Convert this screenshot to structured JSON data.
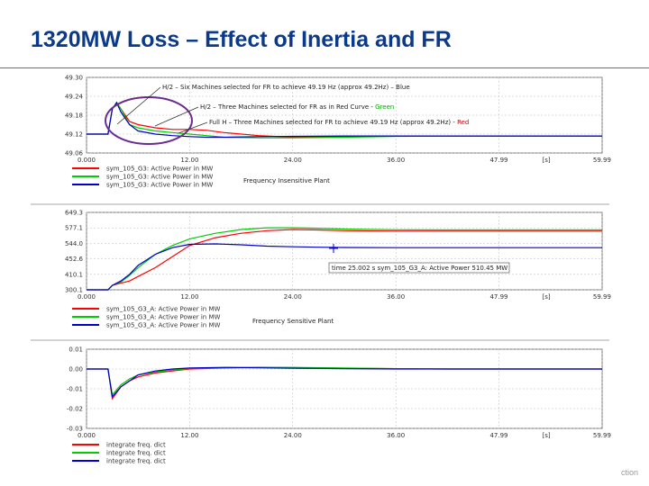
{
  "slide": {
    "title": "1320MW Loss – Effect of Inertia and FR",
    "footer": "ction"
  },
  "chart_data": [
    {
      "type": "line",
      "title": "",
      "xlabel": "[s]",
      "ylabel": "",
      "xlim": [
        0,
        60
      ],
      "ylim": [
        49.06,
        49.3
      ],
      "x_tick_labels": [
        "0.000",
        "12.00",
        "24.00",
        "36.00",
        "47.99",
        "[s]",
        "59.99"
      ],
      "y_tick_labels": [
        "49.30",
        "49.24",
        "49.18",
        "49.12",
        "49.06"
      ],
      "series": [
        {
          "name": "sym_105_G3: Active Power in MW",
          "color": "#ff0000",
          "x": [
            0,
            2.5,
            3,
            3.5,
            4,
            5,
            6,
            8,
            10,
            12,
            14,
            16,
            20,
            24,
            30,
            36,
            42,
            48,
            54,
            60
          ],
          "y": [
            49.12,
            49.12,
            49.2,
            49.22,
            49.2,
            49.16,
            49.15,
            49.14,
            49.135,
            49.135,
            49.132,
            49.125,
            49.115,
            49.11,
            49.112,
            49.114,
            49.114,
            49.114,
            49.114,
            49.114
          ]
        },
        {
          "name": "sym_105_G3: Active Power in MW",
          "color": "#00cc00",
          "x": [
            0,
            2.5,
            3,
            3.5,
            4,
            5,
            6,
            8,
            10,
            12,
            14,
            16,
            20,
            24,
            30,
            36,
            42,
            48,
            54,
            60
          ],
          "y": [
            49.12,
            49.12,
            49.2,
            49.22,
            49.2,
            49.15,
            49.14,
            49.13,
            49.125,
            49.12,
            49.115,
            49.11,
            49.108,
            49.108,
            49.11,
            49.113,
            49.114,
            49.114,
            49.114,
            49.114
          ]
        },
        {
          "name": "sym_105_G3: Active Power in MW",
          "color": "#0000cc",
          "x": [
            0,
            2.5,
            3,
            3.5,
            4,
            5,
            6,
            8,
            10,
            12,
            14,
            16,
            20,
            24,
            30,
            36,
            42,
            48,
            54,
            60
          ],
          "y": [
            49.12,
            49.12,
            49.2,
            49.22,
            49.19,
            49.15,
            49.13,
            49.12,
            49.115,
            49.112,
            49.11,
            49.11,
            49.112,
            49.113,
            49.114,
            49.114,
            49.114,
            49.114,
            49.114,
            49.114
          ]
        }
      ],
      "annotations": [
        "H/2 – Six Machines selected for FR to achieve 49.19 Hz (approx 49.2Hz) – Blue",
        "H/2 – Three Machines selected for FR as in Red Curve - ",
        "Green",
        "Full H – Three Machines selected for FR to achieve 49.19 Hz (approx 49.2Hz) - ",
        "Red"
      ],
      "plant_label": "Frequency Insensitive Plant"
    },
    {
      "type": "line",
      "title": "",
      "xlabel": "[s]",
      "ylabel": "",
      "xlim": [
        0,
        60
      ],
      "ylim": [
        300.1,
        649.3
      ],
      "x_tick_labels": [
        "0.000",
        "12.00",
        "24.00",
        "36.00",
        "47.99",
        "[s]",
        "59.99"
      ],
      "y_tick_labels": [
        "649.3",
        "577.1",
        "544.0",
        "452.6",
        "410.1",
        "300.1"
      ],
      "series": [
        {
          "name": "sym_105_G3_A: Active Power in MW",
          "color": "#ff0000",
          "x": [
            0,
            2.5,
            3,
            4,
            5,
            6,
            8,
            10,
            12,
            15,
            18,
            21,
            24,
            27,
            30,
            36,
            42,
            48,
            54,
            60
          ],
          "y": [
            300.1,
            300.1,
            320,
            330,
            340,
            360,
            400,
            450,
            500,
            535,
            555,
            567,
            572,
            570,
            567,
            565,
            565,
            565,
            565,
            565
          ]
        },
        {
          "name": "sym_105_G3_A: Active Power in MW",
          "color": "#00cc00",
          "x": [
            0,
            2.5,
            3,
            4,
            5,
            6,
            8,
            10,
            12,
            15,
            18,
            21,
            24,
            27,
            30,
            36,
            42,
            48,
            54,
            60
          ],
          "y": [
            300.1,
            300.1,
            320,
            335,
            365,
            400,
            460,
            500,
            530,
            555,
            572,
            580,
            580,
            578,
            574,
            571,
            570,
            570,
            570,
            570
          ]
        },
        {
          "name": "sym_105_G3_A: Active Power in MW",
          "color": "#0000cc",
          "x": [
            0,
            2.5,
            3,
            4,
            5,
            6,
            8,
            10,
            12,
            15,
            18,
            21,
            24,
            27,
            30,
            36,
            42,
            48,
            54,
            60
          ],
          "y": [
            300.1,
            300.1,
            320,
            340,
            370,
            410,
            460,
            490,
            505,
            507,
            503,
            497,
            494,
            492,
            491,
            490,
            490,
            490,
            490,
            490
          ]
        }
      ],
      "annotations": [
        "time  25.002 s  sym_105_G3_A: Active Power  510.45 MW"
      ],
      "plant_label": "Frequency Sensitive Plant"
    },
    {
      "type": "line",
      "title": "",
      "xlabel": "[s]",
      "ylabel": "",
      "xlim": [
        0,
        60
      ],
      "ylim": [
        -0.03,
        0.01
      ],
      "x_tick_labels": [
        "0.000",
        "12.00",
        "24.00",
        "36.00",
        "47.99",
        "[s]",
        "59.99"
      ],
      "y_tick_labels": [
        "0.01",
        "0.00",
        "-0.01",
        "-0.02",
        "-0.03"
      ],
      "series": [
        {
          "name": "integrate freq. dict",
          "color": "#ff0000",
          "x": [
            0,
            2.5,
            3,
            4,
            5,
            6,
            8,
            10,
            12,
            16,
            20,
            24,
            30,
            36,
            42,
            48,
            54,
            60
          ],
          "y": [
            0,
            0,
            -0.015,
            -0.009,
            -0.006,
            -0.004,
            -0.002,
            -0.001,
            0.0,
            0.0005,
            0.0008,
            0.0007,
            0.0004,
            0.0002,
            0.0,
            0.0,
            0.0,
            0.0
          ]
        },
        {
          "name": "integrate freq. dict",
          "color": "#00cc00",
          "x": [
            0,
            2.5,
            3,
            4,
            5,
            6,
            8,
            10,
            12,
            16,
            20,
            24,
            30,
            36,
            42,
            48,
            54,
            60
          ],
          "y": [
            0,
            0,
            -0.013,
            -0.008,
            -0.005,
            -0.003,
            -0.0015,
            -0.0005,
            0.0003,
            0.0007,
            0.0009,
            0.0008,
            0.0005,
            0.0002,
            0.0,
            0.0,
            0.0,
            0.0
          ]
        },
        {
          "name": "integrate freq. dict",
          "color": "#0000cc",
          "x": [
            0,
            2.5,
            3,
            4,
            5,
            6,
            8,
            10,
            12,
            16,
            20,
            24,
            30,
            36,
            42,
            48,
            54,
            60
          ],
          "y": [
            0,
            0,
            -0.014,
            -0.009,
            -0.006,
            -0.003,
            -0.001,
            0.0,
            0.0005,
            0.0008,
            0.0006,
            0.0004,
            0.0002,
            0.0,
            0.0,
            0.0,
            0.0,
            0.0
          ]
        }
      ],
      "annotations": [],
      "plant_label": ""
    }
  ]
}
